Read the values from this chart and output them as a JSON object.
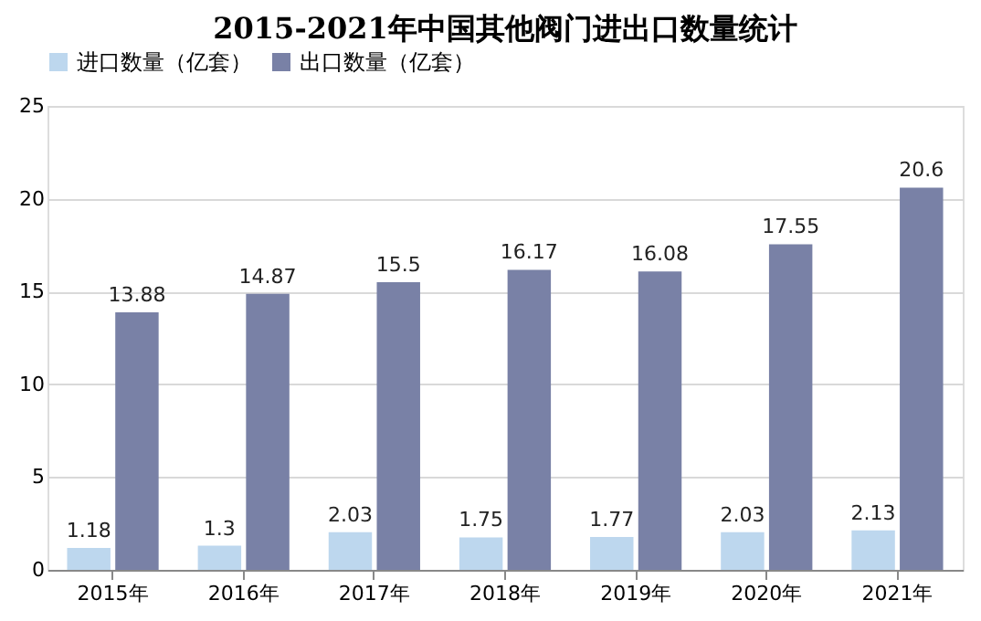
{
  "chart_data": {
    "type": "bar",
    "title": "2015-2021年中国其他阀门进出口数量统计",
    "categories": [
      "2015年",
      "2016年",
      "2017年",
      "2018年",
      "2019年",
      "2020年",
      "2021年"
    ],
    "series": [
      {
        "name": "进口数量（亿套）",
        "color": "#bdd7ee",
        "values": [
          1.18,
          1.3,
          2.03,
          1.75,
          1.77,
          2.03,
          2.13
        ]
      },
      {
        "name": "出口数量（亿套）",
        "color": "#7981a6",
        "values": [
          13.88,
          14.87,
          15.5,
          16.17,
          16.08,
          17.55,
          20.6
        ]
      }
    ],
    "ylim": [
      0,
      25
    ],
    "yticks": [
      0,
      5,
      10,
      15,
      20,
      25
    ],
    "grid": "y",
    "legend": "top",
    "data_labels": true
  }
}
